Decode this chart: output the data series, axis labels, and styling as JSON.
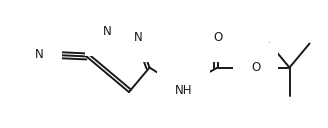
{
  "bg_color": "#ffffff",
  "line_color": "#1a1a1a",
  "line_width": 1.4,
  "font_size": 8.5,
  "fig_width": 3.28,
  "fig_height": 1.28,
  "dpi": 100,
  "xlim": [
    0,
    328
  ],
  "ylim": [
    0,
    128
  ]
}
